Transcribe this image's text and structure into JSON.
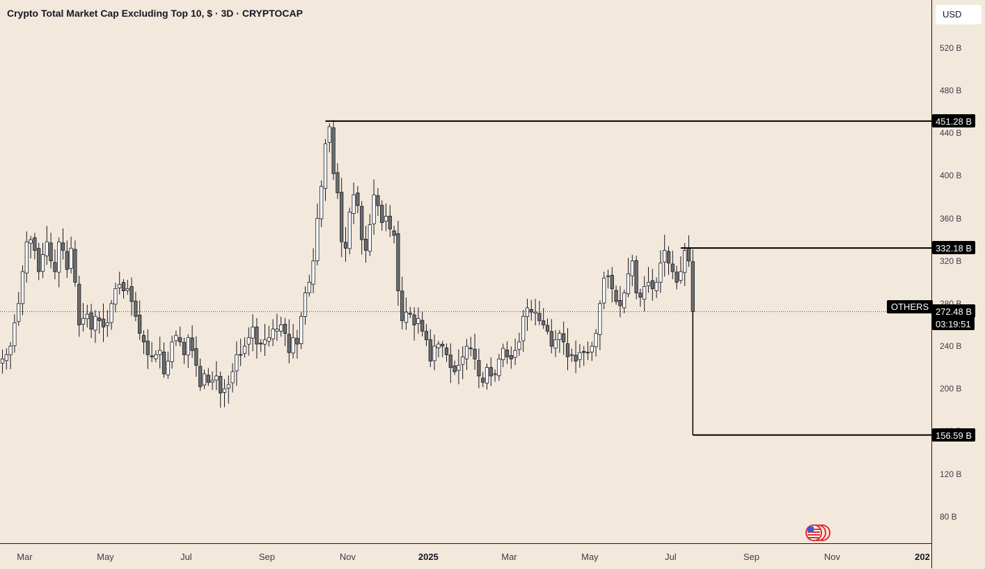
{
  "title": "Crypto Total Market Cap Excluding Top 10, $ · 3D · CRYPTOCAP",
  "currency": "USD",
  "symbol_label": "OTHERS",
  "price_tags": [
    {
      "text": "451.28 B",
      "value": 451.28
    },
    {
      "text": "332.18 B",
      "value": 332.18
    },
    {
      "text": "272.48 B",
      "value": 272.48
    },
    {
      "text": "03:19:51",
      "value": null
    },
    {
      "text": "156.59 B",
      "value": 156.59
    }
  ],
  "colors": {
    "background": "#f3e8dc",
    "up": "#ffffff",
    "down": "#6e6e6e",
    "wick": "#131722",
    "line": "#000000"
  },
  "chart_data": {
    "type": "candlestick",
    "title": "Crypto Total Market Cap Excluding Top 10, $ · 3D · CRYPTOCAP",
    "y_unit": "B USD",
    "ylim": [
      55,
      565
    ],
    "y_ticks": [
      {
        "value": 520,
        "label": "520 B"
      },
      {
        "value": 480,
        "label": "480 B"
      },
      {
        "value": 440,
        "label": "440 B"
      },
      {
        "value": 400,
        "label": "400 B"
      },
      {
        "value": 360,
        "label": "360 B"
      },
      {
        "value": 320,
        "label": "320 B"
      },
      {
        "value": 280,
        "label": "280 B"
      },
      {
        "value": 240,
        "label": "240 B"
      },
      {
        "value": 200,
        "label": "200 B"
      },
      {
        "value": 160,
        "label": "160 B"
      },
      {
        "value": 120,
        "label": "120 B"
      },
      {
        "value": 80,
        "label": "80 B"
      }
    ],
    "x_ticks": [
      {
        "label": "Mar",
        "bold": false
      },
      {
        "label": "May",
        "bold": false
      },
      {
        "label": "Jul",
        "bold": false
      },
      {
        "label": "Sep",
        "bold": false
      },
      {
        "label": "Nov",
        "bold": false
      },
      {
        "label": "2025",
        "bold": true
      },
      {
        "label": "Mar",
        "bold": false
      },
      {
        "label": "May",
        "bold": false
      },
      {
        "label": "Jul",
        "bold": false
      },
      {
        "label": "Sep",
        "bold": false
      },
      {
        "label": "Nov",
        "bold": false
      },
      {
        "label": "202",
        "bold": true
      }
    ],
    "x_tick_bars": [
      5.5,
      25.5,
      45.5,
      65.5,
      85.5,
      105.5,
      125.5,
      145.5,
      165.5,
      185.5,
      205.5,
      225.5
    ],
    "close_path": [
      228,
      232,
      240,
      262,
      280,
      310,
      338,
      340,
      330,
      310,
      326,
      338,
      320,
      310,
      338,
      330,
      312,
      332,
      300,
      260,
      266,
      270,
      256,
      268,
      264,
      258,
      262,
      280,
      294,
      298,
      292,
      294,
      282,
      268,
      252,
      244,
      232,
      230,
      232,
      236,
      214,
      226,
      244,
      250,
      244,
      232,
      248,
      236,
      222,
      202,
      214,
      206,
      208,
      212,
      196,
      200,
      204,
      216,
      232,
      232,
      240,
      248,
      258,
      242,
      242,
      246,
      248,
      256,
      256,
      260,
      252,
      234,
      248,
      242,
      268,
      290,
      300,
      320,
      360,
      390,
      430,
      446,
      402,
      384,
      338,
      332,
      366,
      382,
      372,
      340,
      330,
      354,
      382,
      372,
      356,
      362,
      350,
      344,
      292,
      264,
      272,
      270,
      260,
      266,
      254,
      246,
      226,
      240,
      242,
      240,
      232,
      220,
      216,
      222,
      230,
      240,
      238,
      228,
      212,
      206,
      220,
      212,
      214,
      228,
      238,
      230,
      228,
      236,
      244,
      268,
      276,
      272,
      272,
      264,
      260,
      254,
      240,
      246,
      252,
      244,
      230,
      232,
      226,
      234,
      234,
      234,
      240,
      252,
      280,
      304,
      306,
      294,
      282,
      278,
      290,
      308,
      320,
      290,
      286,
      296,
      300,
      294,
      300,
      318,
      330,
      318,
      310,
      300,
      310,
      330,
      320,
      272.48
    ],
    "last_price": 272.48,
    "levels": [
      {
        "name": "high",
        "value": 451.28
      },
      {
        "name": "prev-high",
        "value": 332.18
      },
      {
        "name": "low-target",
        "value": 156.59
      }
    ]
  }
}
